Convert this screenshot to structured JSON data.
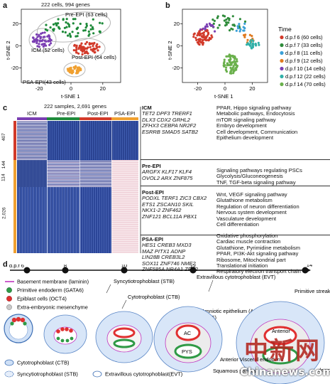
{
  "panel_a": {
    "letter": "a",
    "title": "222 cells, 994 genes",
    "xlabel": "t-SNE 1",
    "ylabel": "t-SNE 2",
    "xticks": [
      "-20",
      "0",
      "20"
    ],
    "yticks": [
      "20",
      "0",
      "-20"
    ],
    "labels": {
      "pre_epi": "Pre-EPI (63 cells)",
      "icm": "ICM (52 cells)",
      "post_epi": "Post-EPI (64 cells)",
      "psa_epi": "PSA-EPI(43 cells)"
    },
    "colors": {
      "pre_epi": "#1e8a3a",
      "icm": "#7b3fb3",
      "post_epi": "#d23a2a",
      "psa_epi": "#f0a030"
    }
  },
  "panel_b": {
    "letter": "b",
    "xlabel": "t-SNE 1",
    "ylabel": "t-SNE 2",
    "xticks": [
      "-20",
      "0",
      "20"
    ],
    "yticks": [
      "20",
      "0",
      "-20"
    ],
    "legend_title": "Time",
    "legend": [
      {
        "label": "d.p.f 6 (60 cells)",
        "color": "#d23a2a"
      },
      {
        "label": "d.p.f 7 (33 cells)",
        "color": "#2e8b3a"
      },
      {
        "label": "d.p.f 8 (11 cells)",
        "color": "#3aa0d8"
      },
      {
        "label": "d.p.f 9 (12 cells)",
        "color": "#e07a20"
      },
      {
        "label": "d.p.f 10 (14 cells)",
        "color": "#7b3fb3"
      },
      {
        "label": "d.p.f 12 (22 cells)",
        "color": "#30b0a8"
      },
      {
        "label": "d.p.f 14 (70 cells)",
        "color": "#6ab04c"
      }
    ]
  },
  "panel_c": {
    "letter": "c",
    "title": "222 samples, 2,691 genes",
    "columns": [
      "ICM",
      "Pre-EPI",
      "Post-EPI",
      "PSA-EPI"
    ],
    "row_counts": [
      "407",
      "144",
      "114",
      "2,026"
    ],
    "blocks": [
      {
        "name": "ICM",
        "genes": [
          "TET2 DPF3 TRERF1",
          "DLX3 CDX2 GRHL2",
          "ZFHX3 CEBPA NR2F2",
          "ESRRB SMAD5 SATB2"
        ],
        "terms": [
          "PPAR, Hippo signaling pathway",
          "Metabolic pathways, Endocytosis",
          "mTOR signaling pathway",
          "Embryo development",
          "Cell development, Communication",
          "Epithelium development"
        ]
      },
      {
        "name": "Pre-EPI",
        "genes": [
          "ARGFX KLF17 KLF4",
          "OVOL2 ARX ZNF875"
        ],
        "terms": [
          "Signaling pathways regulating PSCs",
          "Glycolysis/Gluconeogenesis",
          "TNF, TGF-beta signaling pathway"
        ]
      },
      {
        "name": "Post-EPI",
        "genes": [
          "PODXL TERF1 ZIC3 CBX2",
          "ETS1 ZSCAN10 SKIL",
          "NKX1-2 ZNF462",
          "ZNF121 BCL11A PBX1"
        ],
        "terms": [
          "Wnt, VEGF signaling pathway",
          "Glutathione metabolism",
          "Regulation of neuron differentiation",
          "Nervous system development",
          "Vasculature development",
          "Cell differentiation"
        ]
      },
      {
        "name": "PSA-EPI",
        "genes": [
          "HES1 CREB3 MXD3",
          "MAZ PITX1 ADNP",
          "LIN28B CREB3L2",
          "SOX11 ZNF746 NME2",
          "ZNF585A NR4A1 ZEB2"
        ],
        "terms": [
          "Oxidative phosphorylation",
          "Cardiac muscle contraction",
          "Glutathione, Pyrimidine metabolism",
          "PPAR, PI3K-Akt signaling pathway",
          "Ribosome, Mitochondrial part",
          "Translational initiation",
          "Respiratory electron transport chain"
        ]
      }
    ]
  },
  "panel_d": {
    "letter": "d",
    "timeline_prefix": "d.p.f",
    "timepoints": [
      "6",
      "8",
      "10",
      "12",
      "14"
    ],
    "annotations": {
      "stb": "Syncytiotrophoblast (STB)",
      "evt": "Extravillous cytotrophoblast (EVT)",
      "ctb": "Cytotrophoblast (CTB)",
      "ame": "Amniotic epithelium (AME)",
      "ame2": "(AME)",
      "psa": "Primitive streak anlage",
      "ac": "AC",
      "pys": "PYS",
      "anterior": "Anterior",
      "anterior_visceral": "Anterior Visceral endoderm",
      "squamous": "Squamous parietal",
      "derm": "derm"
    },
    "legend": [
      {
        "label": "Basement membrane (laminin)",
        "swatch": "line"
      },
      {
        "label": "Primitive endoderm (GATA6)",
        "swatch": "green"
      },
      {
        "label": "Epiblast cells (OCT4)",
        "swatch": "red"
      },
      {
        "label": "Extra-embryonic mesenchyme",
        "swatch": "grey"
      }
    ],
    "bottom_legend": [
      {
        "label": "Cytotrophoblast (CTB)"
      },
      {
        "label": "Syncytiotrophoblast (STB)"
      },
      {
        "label": "Extravillous cytotrophoblast(EVT)"
      }
    ]
  },
  "watermark": {
    "cn": "中新网",
    "en": "Chinanews.com"
  }
}
